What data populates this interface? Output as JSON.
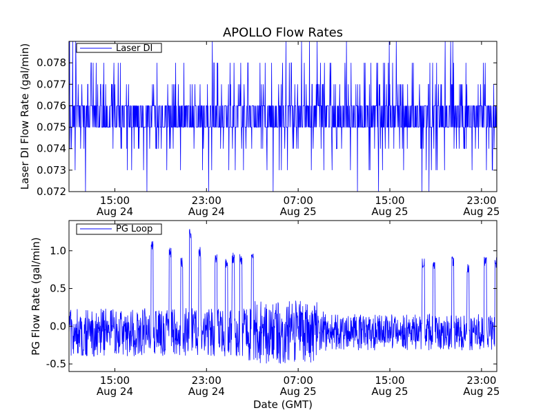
{
  "title": "APOLLO Flow Rates",
  "xlabel": "Date (GMT)",
  "chart_data": [
    {
      "type": "line",
      "ylabel": "Laser DI Flow Rate (gal/min)",
      "legend": "top-left",
      "grid": false,
      "color": "#0000ff",
      "xlim": [
        "2010-08-24T11:00",
        "2010-08-26T00:20"
      ],
      "ylim": [
        0.072,
        0.079
      ],
      "yticks": [
        {
          "value": 0.072,
          "label": "0.072"
        },
        {
          "value": 0.073,
          "label": "0.073"
        },
        {
          "value": 0.074,
          "label": "0.074"
        },
        {
          "value": 0.075,
          "label": "0.075"
        },
        {
          "value": 0.076,
          "label": "0.076"
        },
        {
          "value": 0.077,
          "label": "0.077"
        },
        {
          "value": 0.078,
          "label": "0.078"
        }
      ],
      "xticks": [
        {
          "value": "2010-08-24T15:00",
          "time": "15:00",
          "date": "Aug 24"
        },
        {
          "value": "2010-08-24T23:00",
          "time": "23:00",
          "date": "Aug 24"
        },
        {
          "value": "2010-08-25T07:00",
          "time": "07:00",
          "date": "Aug 25"
        },
        {
          "value": "2010-08-25T15:00",
          "time": "15:00",
          "date": "Aug 25"
        },
        {
          "value": "2010-08-25T23:00",
          "time": "23:00",
          "date": "Aug 25"
        }
      ],
      "series": [
        {
          "name": "Laser DI",
          "baseline_values": [
            0.075,
            0.076
          ],
          "noise_range": [
            0.072,
            0.079
          ]
        }
      ]
    },
    {
      "type": "line",
      "ylabel": "PG Flow Rate (gal/min)",
      "legend": "top-left",
      "grid": false,
      "color": "#0000ff",
      "xlim": [
        "2010-08-24T11:00",
        "2010-08-26T00:20"
      ],
      "ylim": [
        -0.6,
        1.4
      ],
      "yticks": [
        {
          "value": -0.5,
          "label": "-0.5"
        },
        {
          "value": 0.0,
          "label": "0.0"
        },
        {
          "value": 0.5,
          "label": "0.5"
        },
        {
          "value": 1.0,
          "label": "1.0"
        }
      ],
      "xticks": [
        {
          "value": "2010-08-24T15:00",
          "time": "15:00",
          "date": "Aug 24"
        },
        {
          "value": "2010-08-24T23:00",
          "time": "23:00",
          "date": "Aug 24"
        },
        {
          "value": "2010-08-25T07:00",
          "time": "07:00",
          "date": "Aug 25"
        },
        {
          "value": "2010-08-25T15:00",
          "time": "15:00",
          "date": "Aug 25"
        },
        {
          "value": "2010-08-25T23:00",
          "time": "23:00",
          "date": "Aug 25"
        }
      ],
      "series": [
        {
          "name": "PG Loop",
          "noise_range": [
            -0.5,
            0.35
          ],
          "spikes": [
            {
              "time": "2010-08-24T18:15",
              "value": 1.13
            },
            {
              "time": "2010-08-24T19:50",
              "value": 1.05
            },
            {
              "time": "2010-08-24T20:50",
              "value": 0.93
            },
            {
              "time": "2010-08-24T21:35",
              "value": 1.29
            },
            {
              "time": "2010-08-24T22:25",
              "value": 1.05
            },
            {
              "time": "2010-08-24T23:50",
              "value": 0.96
            },
            {
              "time": "2010-08-25T00:45",
              "value": 0.92
            },
            {
              "time": "2010-08-25T01:20",
              "value": 0.98
            },
            {
              "time": "2010-08-25T02:00",
              "value": 0.97
            },
            {
              "time": "2010-08-25T03:00",
              "value": 0.97
            },
            {
              "time": "2010-08-25T17:55",
              "value": 0.92
            },
            {
              "time": "2010-08-25T18:50",
              "value": 0.9
            },
            {
              "time": "2010-08-25T20:30",
              "value": 0.93
            },
            {
              "time": "2010-08-25T21:50",
              "value": 0.86
            },
            {
              "time": "2010-08-25T23:20",
              "value": 0.92
            },
            {
              "time": "2010-08-26T00:15",
              "value": 0.92
            }
          ]
        }
      ]
    }
  ]
}
